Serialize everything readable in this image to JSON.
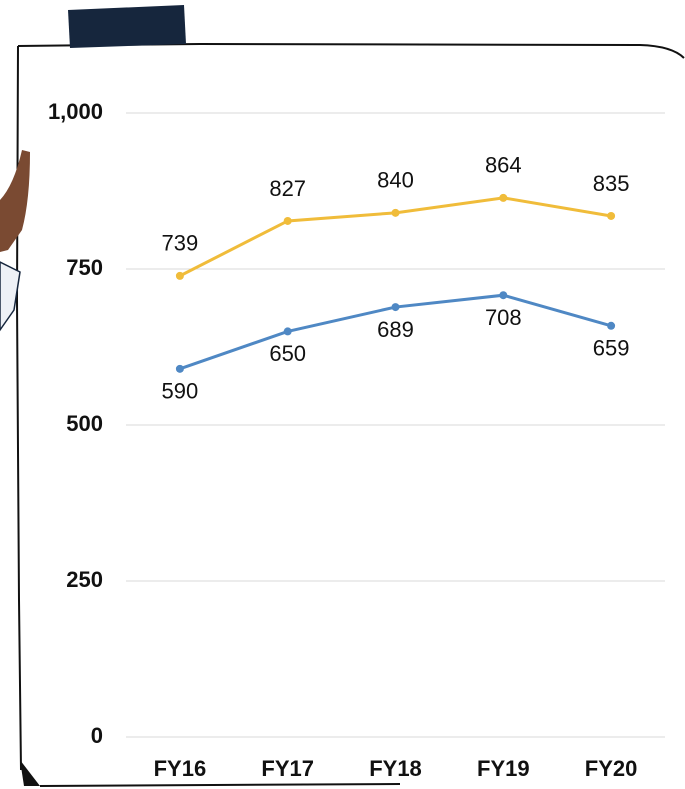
{
  "chart_data": {
    "type": "line",
    "categories": [
      "FY16",
      "FY17",
      "FY18",
      "FY19",
      "FY20"
    ],
    "series": [
      {
        "color": "#f0bc3a",
        "values": [
          739,
          827,
          840,
          864,
          835
        ]
      },
      {
        "color": "#4f88c4",
        "values": [
          590,
          650,
          689,
          708,
          659
        ]
      }
    ],
    "ylim": [
      0,
      1000
    ],
    "yticks": [
      0,
      250,
      500,
      750,
      {
        "value": 1000,
        "label": "1,000"
      }
    ],
    "grid": true
  }
}
